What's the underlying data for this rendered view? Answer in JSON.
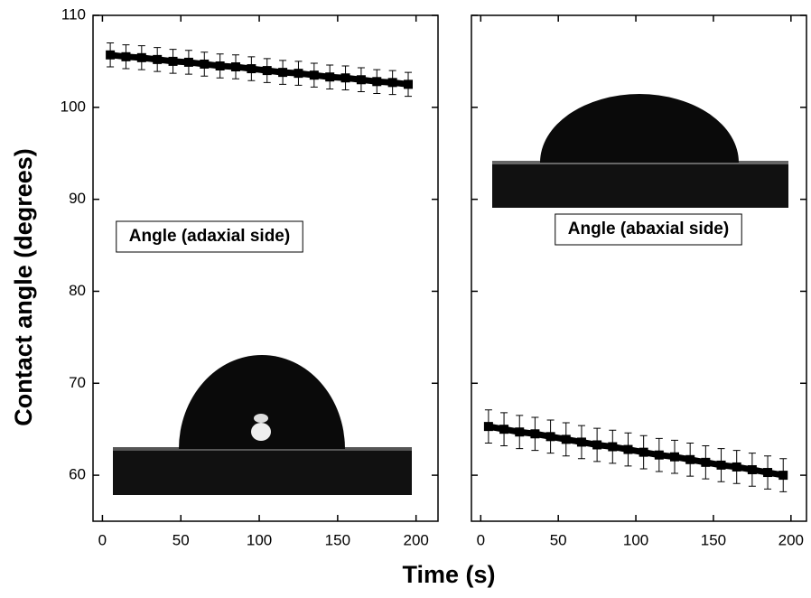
{
  "chart_data": [
    {
      "type": "line",
      "ylabel": "Contact angle (degrees)",
      "xlabel": "Time (s)",
      "annotation": "Angle (adaxial side)",
      "x": [
        5,
        15,
        25,
        35,
        45,
        55,
        65,
        75,
        85,
        95,
        105,
        115,
        125,
        135,
        145,
        155,
        165,
        175,
        185,
        195
      ],
      "values": [
        105.7,
        105.5,
        105.4,
        105.2,
        105.0,
        104.9,
        104.7,
        104.5,
        104.4,
        104.2,
        104.0,
        103.8,
        103.7,
        103.5,
        103.3,
        103.2,
        103.0,
        102.8,
        102.7,
        102.5
      ],
      "errors": [
        1.3,
        1.3,
        1.3,
        1.3,
        1.3,
        1.3,
        1.3,
        1.3,
        1.3,
        1.3,
        1.3,
        1.3,
        1.3,
        1.3,
        1.3,
        1.3,
        1.3,
        1.3,
        1.3,
        1.3
      ],
      "color": "#000000",
      "xlim": [
        -6,
        214
      ],
      "xticks": [
        0,
        50,
        100,
        150,
        200
      ],
      "ylim": [
        55,
        110
      ],
      "yticks": [
        60,
        70,
        80,
        90,
        100,
        110
      ]
    },
    {
      "type": "line",
      "annotation": "Angle (abaxial side)",
      "x": [
        5,
        15,
        25,
        35,
        45,
        55,
        65,
        75,
        85,
        95,
        105,
        115,
        125,
        135,
        145,
        155,
        165,
        175,
        185,
        195
      ],
      "values": [
        65.3,
        65.0,
        64.7,
        64.5,
        64.2,
        63.9,
        63.6,
        63.3,
        63.1,
        62.8,
        62.5,
        62.2,
        62.0,
        61.7,
        61.4,
        61.1,
        60.9,
        60.6,
        60.3,
        60.0
      ],
      "errors": [
        1.8,
        1.8,
        1.8,
        1.8,
        1.8,
        1.8,
        1.8,
        1.8,
        1.8,
        1.8,
        1.8,
        1.8,
        1.8,
        1.8,
        1.8,
        1.8,
        1.8,
        1.8,
        1.8,
        1.8
      ],
      "color": "#000000",
      "xlim": [
        -6,
        210
      ],
      "xticks": [
        0,
        50,
        100,
        150,
        200
      ],
      "ylim": [
        55,
        110
      ],
      "yticks": [
        60,
        70,
        80,
        90,
        100,
        110
      ]
    }
  ]
}
